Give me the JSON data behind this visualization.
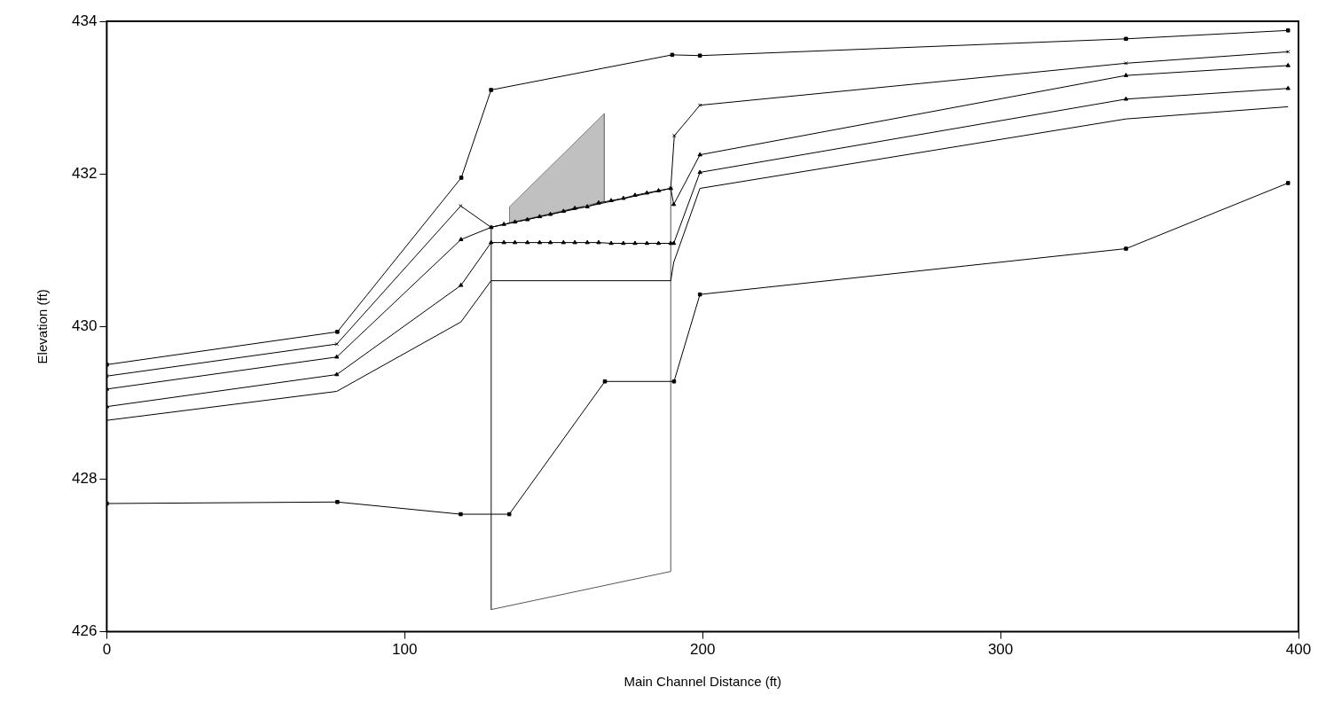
{
  "chart_data": {
    "type": "line",
    "xlabel": "Main Channel Distance (ft)",
    "ylabel": "Elevation (ft)",
    "xlim": [
      0,
      400
    ],
    "xticks": [
      0,
      100,
      200,
      300,
      400
    ],
    "ylim": [
      426,
      434
    ],
    "yticks": [
      426,
      428,
      430,
      432,
      434
    ],
    "grid": false,
    "legend": false,
    "line_style": "solid",
    "series": [
      {
        "color": "#000000",
        "marker": "square",
        "x": [
          0,
          77.4,
          119.0,
          129.0,
          189.8,
          199.1,
          342.1,
          396.5
        ],
        "values": [
          429.5,
          429.93,
          431.95,
          433.1,
          433.56,
          433.55,
          433.77,
          433.88
        ]
      },
      {
        "color": "#000000",
        "marker": "cross",
        "x": [
          0,
          77.2,
          118.8,
          129.0,
          189.3,
          190.5,
          199.1,
          342.1,
          396.5
        ],
        "values": [
          429.35,
          429.77,
          431.58,
          431.3,
          431.81,
          432.5,
          432.9,
          433.45,
          433.6
        ]
      },
      {
        "color": "#000000",
        "marker": "triangle",
        "x": [
          0,
          77.2,
          118.9,
          129.0,
          133.3,
          137.0,
          141.2,
          145.3,
          148.9,
          153.3,
          157.1,
          161.3,
          165.1,
          169.3,
          173.4,
          177.3,
          181.3,
          185.2,
          189.3,
          190.3,
          199.1,
          342.1,
          396.5
        ],
        "values": [
          429.18,
          429.6,
          431.14,
          431.3,
          431.34,
          431.37,
          431.4,
          431.44,
          431.47,
          431.51,
          431.55,
          431.57,
          431.62,
          431.65,
          431.68,
          431.72,
          431.75,
          431.78,
          431.81,
          431.6,
          432.25,
          433.29,
          433.42
        ]
      },
      {
        "color": "#000000",
        "marker": "triangle",
        "x": [
          0,
          77.2,
          118.9,
          129.0,
          133.3,
          137.0,
          141.2,
          145.3,
          148.9,
          153.3,
          157.1,
          161.3,
          165.1,
          169.3,
          173.4,
          177.3,
          181.3,
          185.2,
          189.3,
          190.3,
          199.1,
          342.1,
          396.5
        ],
        "values": [
          428.95,
          429.37,
          430.54,
          431.1,
          431.1,
          431.1,
          431.1,
          431.1,
          431.1,
          431.1,
          431.1,
          431.1,
          431.1,
          431.09,
          431.09,
          431.09,
          431.09,
          431.09,
          431.09,
          431.09,
          432.02,
          432.98,
          433.12
        ]
      },
      {
        "color": "#000000",
        "marker": "none",
        "x": [
          0,
          77.2,
          118.9,
          129.0,
          189.3,
          190.3,
          199.1,
          342.1,
          396.5
        ],
        "values": [
          428.77,
          429.15,
          430.06,
          430.6,
          430.6,
          430.84,
          431.81,
          432.72,
          432.88
        ]
      },
      {
        "color": "#000000",
        "marker": "square",
        "x": [
          0,
          77.4,
          118.8,
          135.1,
          167.2,
          190.4,
          199.1,
          342.1,
          396.5
        ],
        "values": [
          427.68,
          427.7,
          427.54,
          427.54,
          429.28,
          429.28,
          430.42,
          431.02,
          431.88
        ]
      },
      {
        "color": "#555555",
        "marker": "none",
        "x": [
          129.0,
          129.0,
          189.3,
          189.3
        ],
        "values": [
          431.3,
          426.29,
          426.79,
          431.81
        ]
      },
      {
        "type": "area",
        "color": "#c0c0c0",
        "x": [
          135.2,
          135.2,
          167.0,
          167.0
        ],
        "values": [
          431.36,
          431.57,
          432.79,
          431.64
        ]
      }
    ]
  }
}
